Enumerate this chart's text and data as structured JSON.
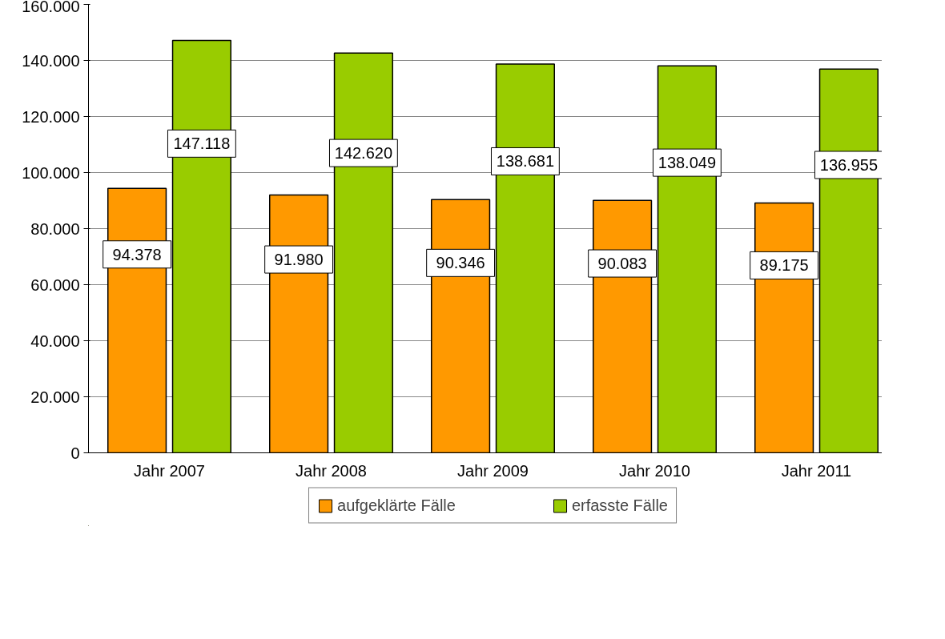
{
  "chart_data": {
    "type": "bar",
    "categories": [
      "Jahr 2007",
      "Jahr 2008",
      "Jahr 2009",
      "Jahr 2010",
      "Jahr 2011"
    ],
    "series": [
      {
        "name": "aufgeklärte Fälle",
        "color": "#ff9900",
        "values": [
          94378,
          91980,
          90346,
          90083,
          89175
        ],
        "value_labels": [
          "94.378",
          "91.980",
          "90.346",
          "90.083",
          "89.175"
        ]
      },
      {
        "name": "erfasste Fälle",
        "color": "#99cc00",
        "values": [
          147118,
          142620,
          138681,
          138049,
          136955
        ],
        "value_labels": [
          "147.118",
          "142.620",
          "138.681",
          "138.049",
          "136.955"
        ]
      }
    ],
    "ylim": [
      0,
      160000
    ],
    "yticks": [
      {
        "value": 0,
        "label": "0"
      },
      {
        "value": 20000,
        "label": "20.000"
      },
      {
        "value": 40000,
        "label": "40.000"
      },
      {
        "value": 60000,
        "label": "60.000"
      },
      {
        "value": 80000,
        "label": "80.000"
      },
      {
        "value": 100000,
        "label": "100.000"
      },
      {
        "value": 120000,
        "label": "120.000"
      },
      {
        "value": 140000,
        "label": "140.000"
      },
      {
        "value": 160000,
        "label": "160.000"
      }
    ],
    "grid": "y",
    "legend": "bottom"
  }
}
